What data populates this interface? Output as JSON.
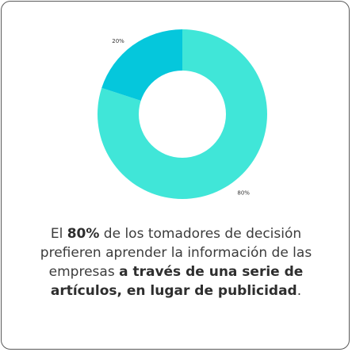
{
  "chart_data": {
    "type": "pie",
    "donut": true,
    "categories": [
      "80%",
      "20%"
    ],
    "values": [
      80,
      20
    ],
    "colors": [
      "#40e6d8",
      "#05c7dc"
    ],
    "start_angle_degrees": 0,
    "direction": "clockwise"
  },
  "caption": {
    "part1": "El ",
    "bold1": "80%",
    "part2": " de los tomadores de decisión prefieren aprender la información de las empresas ",
    "bold2": "a través de una serie de artículos, en lugar de publicidad",
    "part3": "."
  }
}
